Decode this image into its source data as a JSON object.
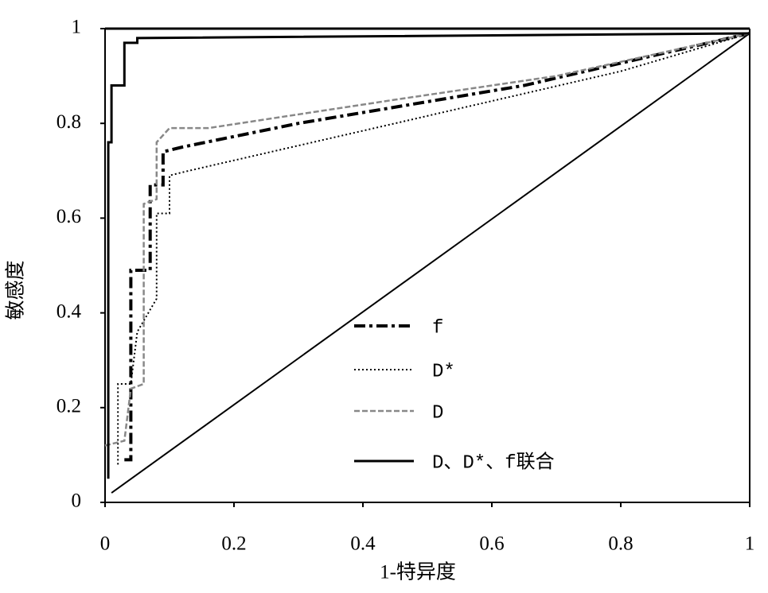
{
  "chart_data": {
    "type": "line",
    "xlabel": "1-特异度",
    "ylabel": "敏感度",
    "xlim": [
      0,
      1
    ],
    "ylim": [
      0,
      1
    ],
    "xticks": [
      0,
      0.2,
      0.4,
      0.6,
      0.8,
      1
    ],
    "yticks": [
      0,
      0.2,
      0.4,
      0.6,
      0.8,
      1
    ],
    "legend": "lower-center",
    "series": [
      {
        "name": "f",
        "color": "#000000",
        "line_style": "dash-dot",
        "line_width": 4,
        "x": [
          0.03,
          0.04,
          0.04,
          0.07,
          0.07,
          0.09,
          0.09,
          0.12,
          0.3,
          0.65,
          1
        ],
        "values": [
          0.09,
          0.09,
          0.49,
          0.49,
          0.67,
          0.67,
          0.74,
          0.75,
          0.8,
          0.88,
          0.99
        ]
      },
      {
        "name": "D*",
        "color": "#000000",
        "line_style": "dotted",
        "line_width": 2,
        "x": [
          0.02,
          0.02,
          0.04,
          0.05,
          0.08,
          0.08,
          0.1,
          0.1,
          0.13,
          0.45,
          0.8,
          1
        ],
        "values": [
          0.08,
          0.25,
          0.25,
          0.36,
          0.43,
          0.61,
          0.61,
          0.69,
          0.7,
          0.8,
          0.91,
          0.99
        ]
      },
      {
        "name": "D",
        "color": "#888888",
        "line_style": "dashed",
        "line_width": 2.5,
        "x": [
          0,
          0.03,
          0.04,
          0.06,
          0.06,
          0.08,
          0.08,
          0.1,
          0.16,
          0.45,
          0.7,
          1
        ],
        "values": [
          0.12,
          0.13,
          0.24,
          0.25,
          0.63,
          0.64,
          0.76,
          0.79,
          0.79,
          0.85,
          0.9,
          0.99
        ]
      },
      {
        "name": "D、D*、f联合",
        "color": "#000000",
        "line_style": "solid",
        "line_width": 3,
        "x": [
          0.005,
          0.005,
          0.01,
          0.01,
          0.03,
          0.03,
          0.05,
          0.05,
          1
        ],
        "values": [
          0.05,
          0.76,
          0.76,
          0.88,
          0.88,
          0.97,
          0.97,
          0.98,
          0.99
        ]
      }
    ],
    "reference_line": {
      "color": "#000000",
      "x": [
        0.01,
        1
      ],
      "values": [
        0.02,
        0.99
      ]
    }
  }
}
